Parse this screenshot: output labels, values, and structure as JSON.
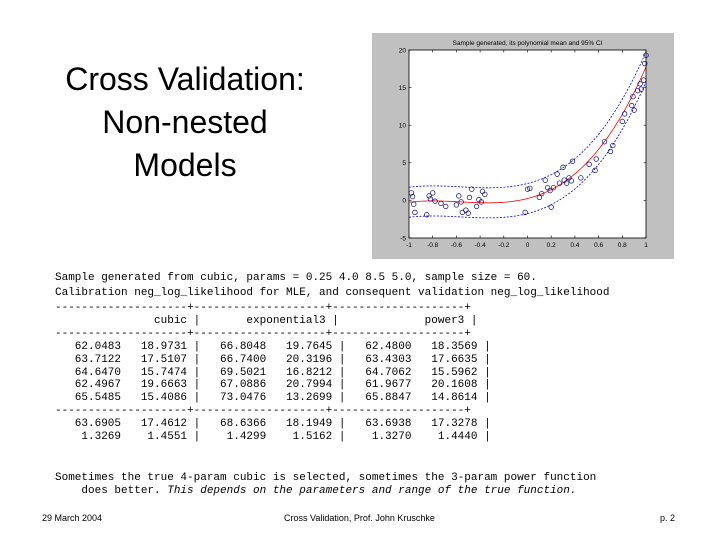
{
  "slide": {
    "title_lines": [
      "Cross Validation:",
      "Non-nested",
      "Models"
    ],
    "info_line1": "Sample generated from cubic, params = 0.25 4.0 8.5 5.0, sample size = 60.",
    "info_line2": "Calibration neg_log_likelihood for MLE, and consequent validation neg_log_likelihood",
    "caption_line1": "Sometimes the true 4-param cubic is selected, sometimes the 3-param power function",
    "caption_line2_prefix": "    does better. ",
    "caption_line2_italic": "This depends on the parameters and range of the true function."
  },
  "table": {
    "separator": "--------------------+--------------------+--------------------+",
    "header_row": "               cubic |       exponential3 |             power3 |",
    "rows": [
      "   62.0483   18.9731 |   66.8048   19.7645 |   62.4800   18.3569 |",
      "   63.7122   17.5107 |   66.7400   20.3196 |   63.4303   17.6635 |",
      "   64.6470   15.7474 |   69.5021   16.8212 |   64.7062   15.5962 |",
      "   62.4967   19.6663 |   67.0886   20.7994 |   61.9677   20.1608 |",
      "   65.5485   15.4086 |   73.0476   13.2699 |   65.8847   14.8614 |"
    ],
    "summary_rows": [
      "   63.6905   17.4612 |   68.6366   18.1949 |   63.6938   17.3278 |",
      "    1.3269    1.4551 |    1.4299    1.5162 |    1.3270    1.4440 |"
    ]
  },
  "footer": {
    "date": "29 March 2004",
    "center": "Cross Validation, Prof. John Kruschke",
    "page": "p. 2"
  },
  "chart_data": {
    "type": "scatter",
    "title": "Sample generated, its polynomial mean and 95% CI",
    "xlim": [
      -1,
      1
    ],
    "ylim": [
      -5,
      20
    ],
    "x_ticks": [
      -1,
      -0.8,
      -0.6,
      -0.4,
      -0.2,
      0,
      0.2,
      0.4,
      0.6,
      0.8,
      1
    ],
    "x_tick_labels": [
      "-1",
      "-0.8",
      "-0.6",
      "-0.4",
      "-0.2",
      "0",
      "0.2",
      "0.4",
      "0.6",
      "0.8",
      "1"
    ],
    "y_ticks": [
      -5,
      0,
      5,
      10,
      15,
      20
    ],
    "y_tick_labels": [
      "-5",
      "0",
      "5",
      "10",
      "15",
      "20"
    ],
    "grid": false,
    "mean_curve": {
      "coefficients": [
        0.25,
        4.0,
        8.5,
        5.0
      ],
      "ci_halfwidth": 2.0,
      "color": "#ff0000",
      "ci_color": "#0000ff"
    },
    "points": {
      "color": "#00007f",
      "x": [
        -0.98,
        -0.97,
        -0.96,
        -0.95,
        -0.85,
        -0.83,
        -0.82,
        -0.8,
        -0.78,
        -0.73,
        -0.69,
        -0.6,
        -0.58,
        -0.56,
        -0.55,
        -0.52,
        -0.5,
        -0.49,
        -0.47,
        -0.43,
        -0.41,
        -0.39,
        -0.38,
        -0.36,
        -0.02,
        0.0,
        0.02,
        0.1,
        0.12,
        0.15,
        0.17,
        0.19,
        0.2,
        0.22,
        0.25,
        0.27,
        0.3,
        0.31,
        0.33,
        0.35,
        0.37,
        0.38,
        0.45,
        0.52,
        0.57,
        0.58,
        0.65,
        0.7,
        0.72,
        0.8,
        0.82,
        0.88,
        0.89,
        0.9,
        0.93,
        0.95,
        0.96,
        0.98,
        0.99,
        1.0
      ],
      "y": [
        1.0,
        0.5,
        -0.5,
        -1.6,
        -1.9,
        0.6,
        0.2,
        1.0,
        -0.1,
        -0.4,
        -0.8,
        -0.6,
        0.6,
        -0.2,
        -1.6,
        -1.3,
        -1.7,
        0.4,
        1.5,
        -0.8,
        0.1,
        -0.2,
        1.2,
        0.8,
        -1.6,
        1.5,
        1.6,
        0.4,
        0.9,
        2.7,
        1.7,
        1.3,
        -0.9,
        1.7,
        3.5,
        2.3,
        4.4,
        2.7,
        2.3,
        3.0,
        2.6,
        5.2,
        3.0,
        4.8,
        4.0,
        5.5,
        7.8,
        6.5,
        7.3,
        10.5,
        11.5,
        12.6,
        13.8,
        12.0,
        14.6,
        15.5,
        14.8,
        16.0,
        18.2,
        19.3
      ]
    }
  }
}
